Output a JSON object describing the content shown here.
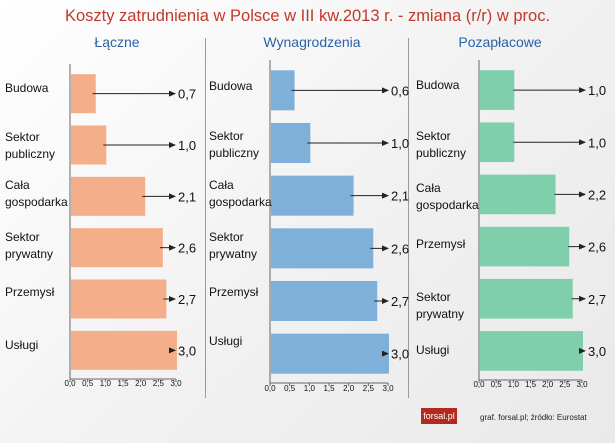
{
  "title": "Koszty zatrudnienia w Polsce w III kw.2013 r. - zmiana (r/r) w proc.",
  "footer": {
    "logo": "forsal.pl",
    "credit": "graf. forsal.pl;   źródło: Eurostat"
  },
  "colors": {
    "lacze": "#f4ae8a",
    "wynagrodzenia": "#7fb0da",
    "pozaplacowe": "#7fcfac",
    "title": "#c0392b",
    "panel_title": "#2a62a8"
  },
  "chart_data": [
    {
      "type": "bar",
      "orientation": "horizontal",
      "title": "Łączne",
      "categories": [
        "Budowa",
        "Sektor publiczny",
        "Cała gospodarka",
        "Sektor prywatny",
        "Przemysł",
        "Usługi"
      ],
      "values": [
        0.7,
        1.0,
        2.1,
        2.6,
        2.7,
        3.0
      ],
      "value_labels": [
        "0,7",
        "1,0",
        "2,1",
        "2,6",
        "2,7",
        "3,0"
      ],
      "xlim": [
        0,
        3.0
      ],
      "ticks": [
        "0,0",
        "0,5",
        "1,0",
        "1,5",
        "2,0",
        "2,5",
        "3,0"
      ]
    },
    {
      "type": "bar",
      "orientation": "horizontal",
      "title": "Wynagrodzenia",
      "categories": [
        "Budowa",
        "Sektor publiczny",
        "Cała gospodarka",
        "Sektor prywatny",
        "Przemysł",
        "Usługi"
      ],
      "values": [
        0.6,
        1.0,
        2.1,
        2.6,
        2.7,
        3.0
      ],
      "value_labels": [
        "0,6",
        "1,0",
        "2,1",
        "2,6",
        "2,7",
        "3,0"
      ],
      "xlim": [
        0,
        3.0
      ],
      "ticks": [
        "0,0",
        "0,5",
        "1,0",
        "1,5",
        "2,0",
        "2,5",
        "3,0"
      ]
    },
    {
      "type": "bar",
      "orientation": "horizontal",
      "title": "Pozapłacowe",
      "categories": [
        "Budowa",
        "Sektor publiczny",
        "Cała gospodarka",
        "Przemysł",
        "Sektor prywatny",
        "Usługi"
      ],
      "values": [
        1.0,
        1.0,
        2.2,
        2.6,
        2.7,
        3.0
      ],
      "value_labels": [
        "1,0",
        "1,0",
        "2,2",
        "2,6",
        "2,7",
        "3,0"
      ],
      "xlim": [
        0,
        3.0
      ],
      "ticks": [
        "0,0",
        "0,5",
        "1,0",
        "1,5",
        "2,0",
        "2,5",
        "3,0"
      ]
    }
  ]
}
